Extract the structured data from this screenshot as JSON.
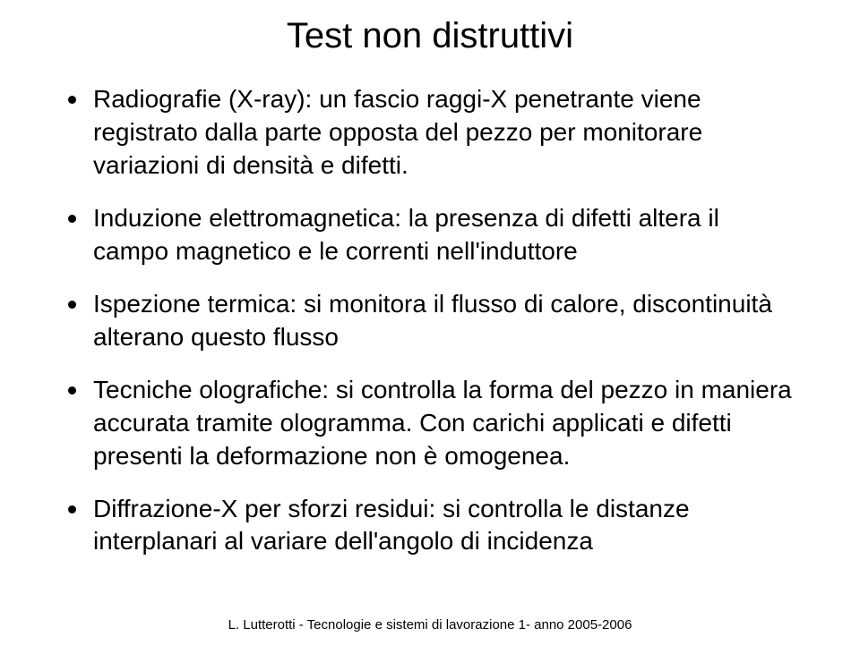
{
  "title": "Test non distruttivi",
  "bullets": [
    "Radiografie (X-ray): un fascio raggi-X penetrante viene registrato dalla parte opposta del pezzo per monitorare variazioni di densità e difetti.",
    "Induzione elettromagnetica: la presenza di difetti altera il campo magnetico e le correnti nell'induttore",
    "Ispezione termica: si monitora il flusso di calore, discontinuità alterano questo flusso",
    "Tecniche olografiche: si controlla la forma del pezzo in maniera accurata tramite ologramma. Con carichi applicati e difetti presenti la deformazione non è omogenea.",
    "Diffrazione-X per sforzi residui: si controlla le distanze interplanari al variare dell'angolo di incidenza"
  ],
  "footer": "L. Lutterotti - Tecnologie e sistemi di lavorazione 1- anno 2005-2006",
  "styling": {
    "background_color": "#ffffff",
    "text_color": "#000000",
    "title_fontsize": 40,
    "body_fontsize": 28,
    "footer_fontsize": 15,
    "bullet_marker": "disc",
    "bullet_color": "#000000",
    "font_family": "Gill Sans",
    "slide_width": 960,
    "slide_height": 721,
    "line_height": 1.32
  }
}
